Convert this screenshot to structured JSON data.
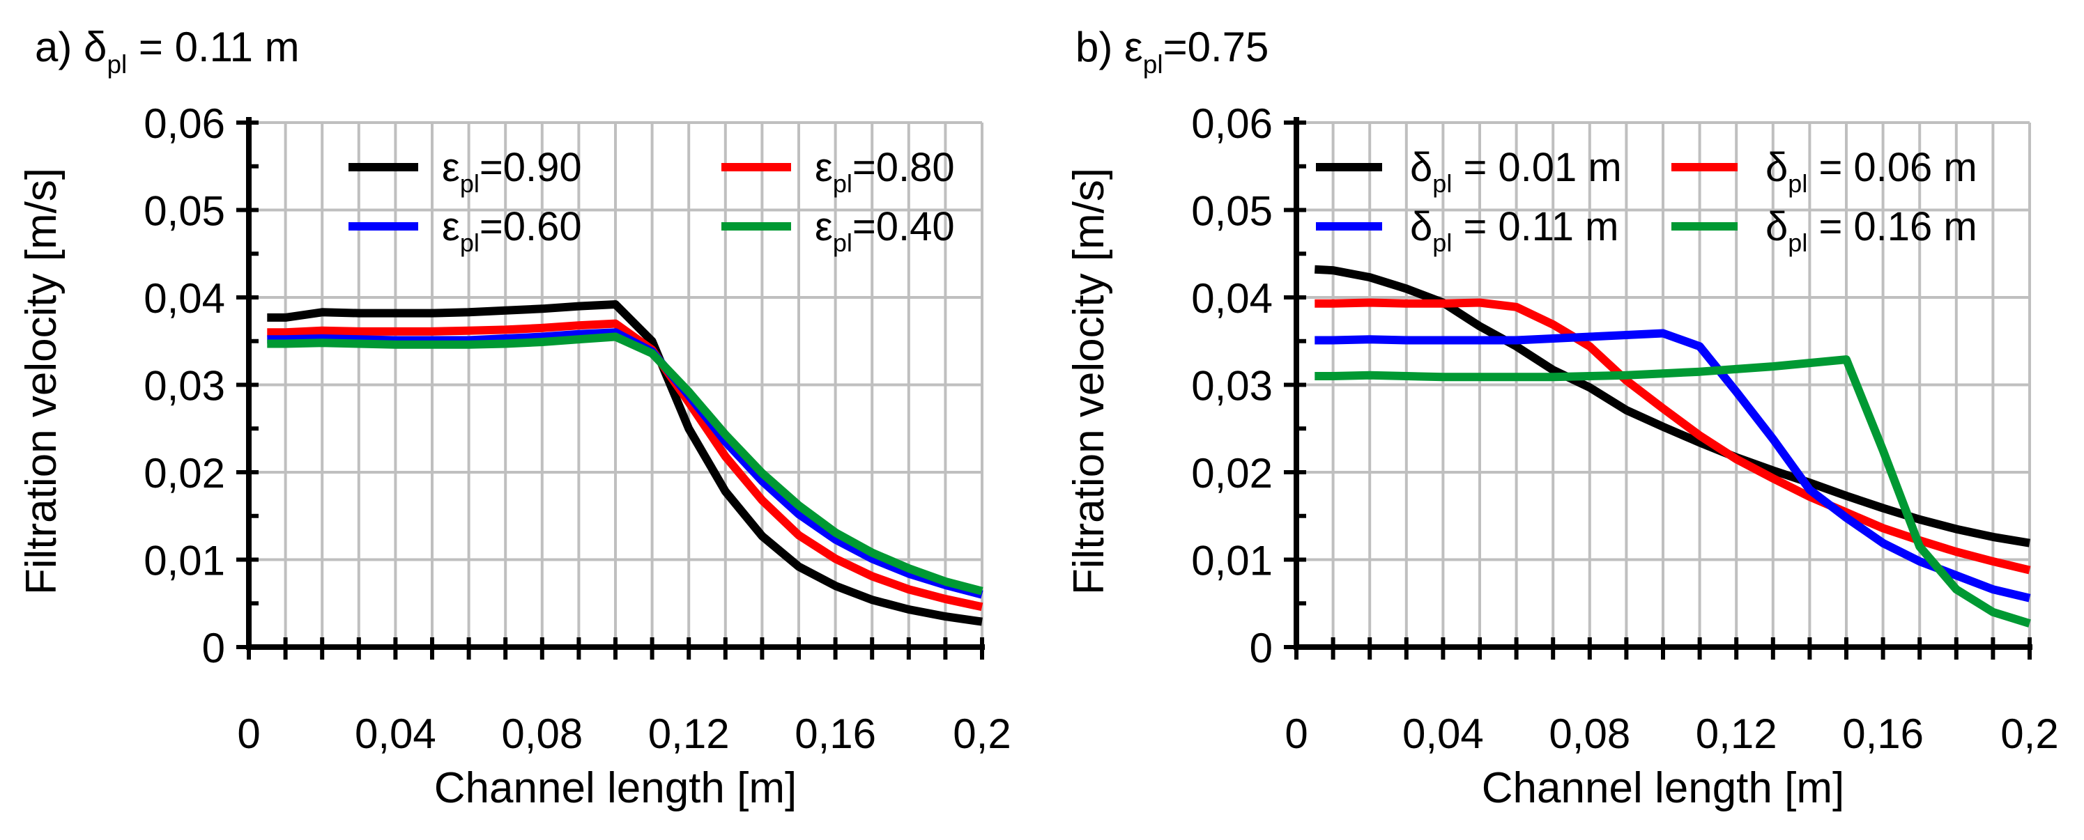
{
  "chart_data": [
    {
      "type": "line",
      "panel_label": "a)",
      "title_parts": {
        "symbol": "δ",
        "sub": "pl",
        "rest": " = 0.11 m"
      },
      "xlabel": "Channel length [m]",
      "ylabel": "Filtration velocity [m/s]",
      "xlim": [
        0,
        0.2
      ],
      "ylim": [
        0,
        0.06
      ],
      "xticks": [
        0,
        0.04,
        0.08,
        0.12,
        0.16,
        0.2
      ],
      "xtick_labels": [
        "0",
        "0,04",
        "0,08",
        "0,12",
        "0,16",
        "0,2"
      ],
      "yticks": [
        0,
        0.01,
        0.02,
        0.03,
        0.04,
        0.05,
        0.06
      ],
      "ytick_labels": [
        "0",
        "0,01",
        "0,02",
        "0,03",
        "0,04",
        "0,05",
        "0,06"
      ],
      "grid": true,
      "legend_position": "top-right",
      "series": [
        {
          "name": "ε_pl=0.90",
          "symbol": "ε",
          "sub": "pl",
          "rest": "=0.90",
          "color": "#000000",
          "x": [
            0.005,
            0.01,
            0.02,
            0.03,
            0.04,
            0.05,
            0.06,
            0.07,
            0.08,
            0.09,
            0.1,
            0.11,
            0.12,
            0.13,
            0.14,
            0.15,
            0.16,
            0.17,
            0.18,
            0.19,
            0.2
          ],
          "y": [
            0.0377,
            0.0377,
            0.0383,
            0.0382,
            0.0382,
            0.0382,
            0.0383,
            0.0385,
            0.0387,
            0.039,
            0.0392,
            0.035,
            0.025,
            0.0178,
            0.0127,
            0.0092,
            0.007,
            0.0054,
            0.0043,
            0.0035,
            0.0029
          ]
        },
        {
          "name": "ε_pl=0.80",
          "symbol": "ε",
          "sub": "pl",
          "rest": "=0.80",
          "color": "#ff0000",
          "x": [
            0.005,
            0.01,
            0.02,
            0.03,
            0.04,
            0.05,
            0.06,
            0.07,
            0.08,
            0.09,
            0.1,
            0.11,
            0.12,
            0.13,
            0.14,
            0.15,
            0.16,
            0.17,
            0.18,
            0.19,
            0.2
          ],
          "y": [
            0.036,
            0.036,
            0.0362,
            0.0361,
            0.0361,
            0.0361,
            0.0362,
            0.0363,
            0.0365,
            0.0368,
            0.037,
            0.034,
            0.028,
            0.0218,
            0.0168,
            0.0128,
            0.0101,
            0.0081,
            0.0066,
            0.0055,
            0.0046
          ]
        },
        {
          "name": "ε_pl=0.60",
          "symbol": "ε",
          "sub": "pl",
          "rest": "=0.60",
          "color": "#0000ff",
          "x": [
            0.005,
            0.01,
            0.02,
            0.03,
            0.04,
            0.05,
            0.06,
            0.07,
            0.08,
            0.09,
            0.1,
            0.11,
            0.12,
            0.13,
            0.14,
            0.15,
            0.16,
            0.17,
            0.18,
            0.19,
            0.2
          ],
          "y": [
            0.0352,
            0.0352,
            0.0353,
            0.0352,
            0.0351,
            0.0351,
            0.0351,
            0.0353,
            0.0355,
            0.0358,
            0.036,
            0.0338,
            0.0288,
            0.0235,
            0.019,
            0.0152,
            0.0123,
            0.0101,
            0.0084,
            0.0071,
            0.006
          ]
        },
        {
          "name": "ε_pl=0.40",
          "symbol": "ε",
          "sub": "pl",
          "rest": "=0.40",
          "color": "#009933",
          "x": [
            0.005,
            0.01,
            0.02,
            0.03,
            0.04,
            0.05,
            0.06,
            0.07,
            0.08,
            0.09,
            0.1,
            0.11,
            0.12,
            0.13,
            0.14,
            0.15,
            0.16,
            0.17,
            0.18,
            0.19,
            0.2
          ],
          "y": [
            0.0347,
            0.0347,
            0.0348,
            0.0347,
            0.0346,
            0.0346,
            0.0346,
            0.0347,
            0.0349,
            0.0352,
            0.0355,
            0.0336,
            0.0292,
            0.0243,
            0.0199,
            0.0162,
            0.0131,
            0.0108,
            0.009,
            0.0075,
            0.0064
          ]
        }
      ]
    },
    {
      "type": "line",
      "panel_label": "b)",
      "title_parts": {
        "symbol": "ε",
        "sub": "pl",
        "rest": "=0.75"
      },
      "xlabel": "Channel length [m]",
      "ylabel": "Filtration velocity [m/s]",
      "xlim": [
        0,
        0.2
      ],
      "ylim": [
        0,
        0.06
      ],
      "xticks": [
        0,
        0.04,
        0.08,
        0.12,
        0.16,
        0.2
      ],
      "xtick_labels": [
        "0",
        "0,04",
        "0,08",
        "0,12",
        "0,16",
        "0,2"
      ],
      "yticks": [
        0,
        0.01,
        0.02,
        0.03,
        0.04,
        0.05,
        0.06
      ],
      "ytick_labels": [
        "0",
        "0,01",
        "0,02",
        "0,03",
        "0,04",
        "0,05",
        "0,06"
      ],
      "grid": true,
      "legend_position": "top",
      "series": [
        {
          "name": "δ_pl = 0.01 m",
          "symbol": "δ",
          "sub": "pl",
          "rest": " = 0.01 m",
          "color": "#000000",
          "x": [
            0.005,
            0.01,
            0.02,
            0.03,
            0.04,
            0.05,
            0.06,
            0.07,
            0.08,
            0.09,
            0.1,
            0.11,
            0.12,
            0.13,
            0.14,
            0.15,
            0.16,
            0.17,
            0.18,
            0.19,
            0.2
          ],
          "y": [
            0.0432,
            0.0431,
            0.0423,
            0.041,
            0.0394,
            0.0367,
            0.0344,
            0.0317,
            0.0297,
            0.0271,
            0.0252,
            0.0234,
            0.0217,
            0.0202,
            0.0188,
            0.0173,
            0.0159,
            0.0146,
            0.0135,
            0.0126,
            0.0119
          ]
        },
        {
          "name": "δ_pl = 0.06 m",
          "symbol": "δ",
          "sub": "pl",
          "rest": " = 0.06 m",
          "color": "#ff0000",
          "x": [
            0.005,
            0.01,
            0.02,
            0.03,
            0.04,
            0.05,
            0.06,
            0.07,
            0.08,
            0.09,
            0.1,
            0.11,
            0.12,
            0.13,
            0.14,
            0.15,
            0.16,
            0.17,
            0.18,
            0.19,
            0.2
          ],
          "y": [
            0.0393,
            0.0393,
            0.0394,
            0.0393,
            0.0393,
            0.0394,
            0.0389,
            0.0369,
            0.0344,
            0.0305,
            0.0273,
            0.0242,
            0.0215,
            0.0193,
            0.0172,
            0.0154,
            0.0136,
            0.0122,
            0.0109,
            0.0098,
            0.0088
          ]
        },
        {
          "name": "δ_pl = 0.11 m",
          "symbol": "δ",
          "sub": "pl",
          "rest": "  = 0.11 m",
          "color": "#0000ff",
          "x": [
            0.005,
            0.01,
            0.02,
            0.03,
            0.04,
            0.05,
            0.06,
            0.07,
            0.08,
            0.09,
            0.1,
            0.11,
            0.12,
            0.13,
            0.14,
            0.15,
            0.16,
            0.17,
            0.18,
            0.19,
            0.2
          ],
          "y": [
            0.0351,
            0.0351,
            0.0352,
            0.0351,
            0.0351,
            0.0351,
            0.0351,
            0.0353,
            0.0355,
            0.0357,
            0.0359,
            0.0344,
            0.0292,
            0.0238,
            0.018,
            0.0148,
            0.0119,
            0.0098,
            0.0082,
            0.0066,
            0.0056
          ]
        },
        {
          "name": "δ_pl = 0.16 m",
          "symbol": "δ",
          "sub": "pl",
          "rest": "  = 0.16 m",
          "color": "#009933",
          "x": [
            0.005,
            0.01,
            0.02,
            0.03,
            0.04,
            0.05,
            0.06,
            0.07,
            0.08,
            0.09,
            0.1,
            0.11,
            0.12,
            0.13,
            0.14,
            0.15,
            0.16,
            0.17,
            0.18,
            0.19,
            0.2
          ],
          "y": [
            0.031,
            0.031,
            0.0311,
            0.031,
            0.0309,
            0.0309,
            0.0309,
            0.0309,
            0.031,
            0.0311,
            0.0313,
            0.0315,
            0.0318,
            0.0321,
            0.0325,
            0.0329,
            0.0225,
            0.0115,
            0.0066,
            0.004,
            0.0027
          ]
        }
      ]
    }
  ]
}
